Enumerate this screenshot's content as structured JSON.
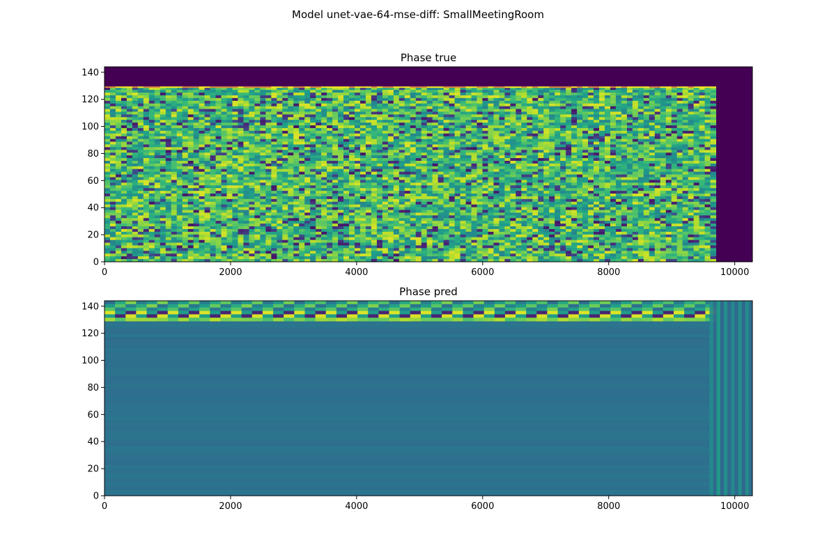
{
  "suptitle": "Model unet-vae-64-mse-diff: SmallMeetingRoom",
  "chart_data": [
    {
      "type": "heatmap",
      "title": "Phase true",
      "colormap": "viridis",
      "xlim": [
        0,
        10280
      ],
      "ylim": [
        0,
        144
      ],
      "x_ticks": [
        0,
        2000,
        4000,
        6000,
        8000,
        10000
      ],
      "y_ticks": [
        0,
        20,
        40,
        60,
        80,
        100,
        120,
        140
      ],
      "data_extent": {
        "x_max": 9700,
        "y_max": 129
      },
      "background_color": "#440154",
      "description": "random phase values across range, padded region zero"
    },
    {
      "type": "heatmap",
      "title": "Phase pred",
      "colormap": "viridis",
      "xlim": [
        0,
        10280
      ],
      "ylim": [
        0,
        144
      ],
      "x_ticks": [
        0,
        2000,
        4000,
        6000,
        8000,
        10000
      ],
      "y_ticks": [
        0,
        20,
        40,
        60,
        80,
        100,
        120,
        140
      ],
      "data_extent": {
        "x_max": 9700,
        "y_max": 129
      },
      "base_color": "#2f6d8e",
      "top_band_rows": [
        129,
        144
      ],
      "right_stripes_x": [
        9600,
        10280
      ]
    }
  ]
}
